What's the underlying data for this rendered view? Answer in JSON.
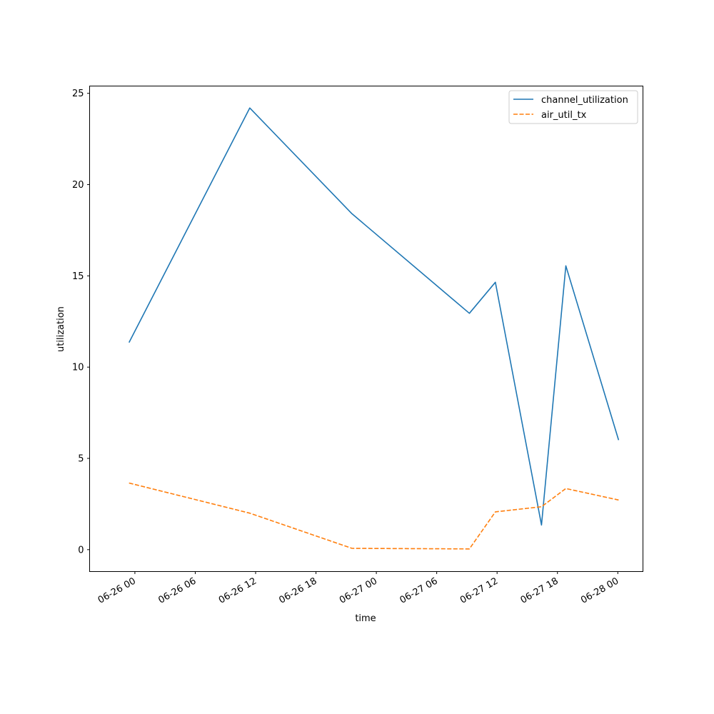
{
  "chart_data": {
    "type": "line",
    "title": "",
    "xlabel": "time",
    "ylabel": "utilization",
    "x_tick_labels": [
      "06-26 00",
      "06-26 06",
      "06-26 12",
      "06-26 18",
      "06-27 00",
      "06-27 06",
      "06-27 12",
      "06-27 18",
      "06-28 00"
    ],
    "x_ticks": [
      "2024-06-26 00:00",
      "2024-06-26 06:00",
      "2024-06-26 12:00",
      "2024-06-26 18:00",
      "2024-06-27 00:00",
      "2024-06-27 06:00",
      "2024-06-27 12:00",
      "2024-06-27 18:00",
      "2024-06-28 00:00"
    ],
    "y_ticks": [
      0,
      5,
      10,
      15,
      20,
      25
    ],
    "xlim": [
      "2024-06-25 19:30",
      "2024-06-28 02:30"
    ],
    "ylim": [
      -1.2,
      25.4
    ],
    "grid": false,
    "legend_position": "top-right",
    "series": [
      {
        "name": "channel_utilization",
        "color": "#1f77b4",
        "dash": "solid",
        "points": [
          {
            "x": "2024-06-25 23:25",
            "y": 11.35
          },
          {
            "x": "2024-06-26 11:25",
            "y": 24.2
          },
          {
            "x": "2024-06-26 21:35",
            "y": 18.4
          },
          {
            "x": "2024-06-27 09:15",
            "y": 12.95
          },
          {
            "x": "2024-06-27 11:50",
            "y": 14.65
          },
          {
            "x": "2024-06-27 16:25",
            "y": 1.35
          },
          {
            "x": "2024-06-27 18:50",
            "y": 15.55
          },
          {
            "x": "2024-06-28 00:05",
            "y": 6.0
          }
        ]
      },
      {
        "name": "air_util_tx",
        "color": "#ff7f0e",
        "dash": "dashed",
        "points": [
          {
            "x": "2024-06-25 23:25",
            "y": 3.65
          },
          {
            "x": "2024-06-26 11:25",
            "y": 2.0
          },
          {
            "x": "2024-06-26 21:35",
            "y": 0.07
          },
          {
            "x": "2024-06-27 09:15",
            "y": 0.04
          },
          {
            "x": "2024-06-27 11:50",
            "y": 2.07
          },
          {
            "x": "2024-06-27 16:25",
            "y": 2.35
          },
          {
            "x": "2024-06-27 18:50",
            "y": 3.35
          },
          {
            "x": "2024-06-28 00:05",
            "y": 2.72
          }
        ]
      }
    ]
  }
}
